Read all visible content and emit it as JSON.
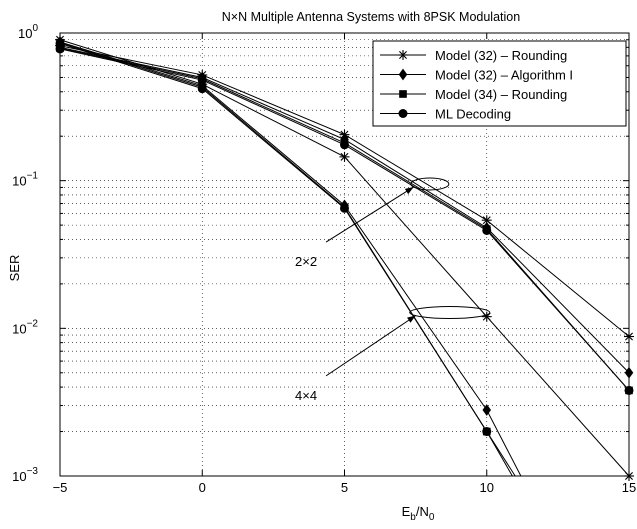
{
  "chart_data": {
    "type": "line",
    "title": "N×N Multiple Antenna Systems with 8PSK Modulation",
    "xlabel": {
      "base": "E",
      "sub1": "b",
      "mid": "/N",
      "sub2": "0"
    },
    "ylabel": "SER",
    "xlim": [
      -5,
      15
    ],
    "ylim": [
      0.001,
      1
    ],
    "yscale": "log",
    "grid": true,
    "legend_position": "top-right",
    "x_ticks": [
      -5,
      0,
      5,
      10,
      15
    ],
    "x_tick_labels": [
      "−5",
      "0",
      "5",
      "10",
      "15"
    ],
    "y_ticks": [
      {
        "base": "10",
        "exp": "0",
        "value": 1
      },
      {
        "base": "10",
        "exp": "−1",
        "value": 0.1
      },
      {
        "base": "10",
        "exp": "−2",
        "value": 0.01
      },
      {
        "base": "10",
        "exp": "−3",
        "value": 0.001
      }
    ],
    "legend": [
      {
        "label": "Model (32) – Rounding",
        "marker": "star"
      },
      {
        "label": "Model (32) – Algorithm I",
        "marker": "diamond"
      },
      {
        "label": "Model (34) – Rounding",
        "marker": "square"
      },
      {
        "label": "ML Decoding",
        "marker": "circle"
      }
    ],
    "series": [
      {
        "group": "2x2",
        "marker": "star",
        "x": [
          -5,
          0,
          5,
          10,
          15
        ],
        "y": [
          0.82,
          0.52,
          0.205,
          0.054,
          0.0088
        ]
      },
      {
        "group": "2x2",
        "marker": "diamond",
        "x": [
          -5,
          0,
          5,
          10,
          15
        ],
        "y": [
          0.8,
          0.5,
          0.19,
          0.048,
          0.005
        ]
      },
      {
        "group": "2x2",
        "marker": "square",
        "x": [
          -5,
          0,
          5,
          10,
          15
        ],
        "y": [
          0.79,
          0.49,
          0.18,
          0.047,
          0.0038
        ]
      },
      {
        "group": "2x2",
        "marker": "circle",
        "x": [
          -5,
          0,
          5,
          10,
          15
        ],
        "y": [
          0.78,
          0.48,
          0.175,
          0.046,
          0.0038
        ]
      },
      {
        "group": "4x4",
        "marker": "star",
        "x": [
          -5,
          0,
          5,
          10,
          15
        ],
        "y": [
          0.9,
          0.45,
          0.145,
          0.012,
          0.001
        ]
      },
      {
        "group": "4x4",
        "marker": "diamond",
        "x": [
          -5,
          0,
          5,
          10,
          11.2
        ],
        "y": [
          0.87,
          0.44,
          0.068,
          0.0028,
          0.001
        ]
      },
      {
        "group": "4x4",
        "marker": "square",
        "x": [
          -5,
          0,
          5,
          10,
          11.0
        ],
        "y": [
          0.86,
          0.43,
          0.066,
          0.002,
          0.001
        ]
      },
      {
        "group": "4x4",
        "marker": "circle",
        "x": [
          -5,
          0,
          5,
          10,
          10.9
        ],
        "y": [
          0.85,
          0.42,
          0.065,
          0.002,
          0.001
        ]
      }
    ],
    "annotations": [
      {
        "text": "2×2",
        "ellipse_center": [
          8.0,
          0.095
        ],
        "text_at": [
          4.0,
          0.029
        ]
      },
      {
        "text": "4×4",
        "ellipse_center": [
          8.7,
          0.0128
        ],
        "text_at": [
          4.0,
          0.0036
        ]
      }
    ]
  }
}
